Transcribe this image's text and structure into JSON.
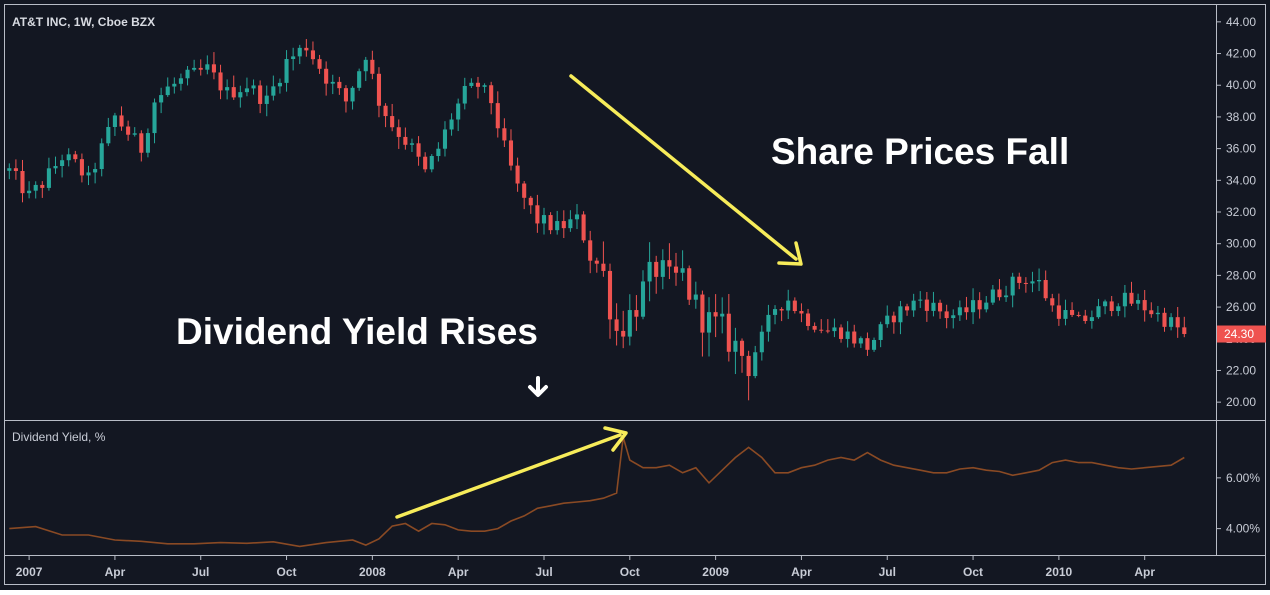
{
  "chart_data": [
    {
      "type": "candlestick",
      "title": "AT&T INC, 1W, Cboe BZX",
      "ylim": [
        19.0,
        45.0
      ],
      "y_ticks": [
        "20.00",
        "22.00",
        "24.00",
        "26.00",
        "28.00",
        "30.00",
        "32.00",
        "34.00",
        "36.00",
        "38.00",
        "40.00",
        "42.00",
        "44.00"
      ],
      "last_price_label": "24.30",
      "x_ticks": [
        "2007",
        "Apr",
        "Jul",
        "Oct",
        "2008",
        "Apr",
        "Jul",
        "Oct",
        "2009",
        "Apr",
        "Jul",
        "Oct",
        "2010",
        "Apr"
      ],
      "x_tick_weeks": [
        3,
        16,
        29,
        42,
        55,
        68,
        81,
        94,
        107,
        120,
        133,
        146,
        159,
        172
      ],
      "weeks_total": 183,
      "anchors": [
        [
          0,
          34.6
        ],
        [
          3,
          33.0
        ],
        [
          5,
          33.8
        ],
        [
          8,
          35.5
        ],
        [
          10,
          35.0
        ],
        [
          12,
          34.0
        ],
        [
          14,
          36.0
        ],
        [
          16,
          38.0
        ],
        [
          18,
          37.0
        ],
        [
          20,
          36.0
        ],
        [
          22,
          39.0
        ],
        [
          24,
          39.8
        ],
        [
          27,
          40.5
        ],
        [
          30,
          41.0
        ],
        [
          33,
          39.5
        ],
        [
          36,
          40.0
        ],
        [
          39,
          39.0
        ],
        [
          42,
          41.5
        ],
        [
          45,
          42.5
        ],
        [
          48,
          40.5
        ],
        [
          51,
          39.0
        ],
        [
          54,
          42.0
        ],
        [
          56,
          39.0
        ],
        [
          58,
          37.5
        ],
        [
          61,
          36.0
        ],
        [
          63,
          34.5
        ],
        [
          65,
          36.0
        ],
        [
          67,
          38.0
        ],
        [
          69,
          39.5
        ],
        [
          71,
          40.0
        ],
        [
          73,
          39.0
        ],
        [
          75,
          36.0
        ],
        [
          77,
          33.5
        ],
        [
          80,
          31.5
        ],
        [
          83,
          31.0
        ],
        [
          86,
          31.5
        ],
        [
          88,
          29.5
        ],
        [
          90,
          28.0
        ],
        [
          92,
          24.5
        ],
        [
          94,
          25.5
        ],
        [
          96,
          27.0
        ],
        [
          98,
          28.5
        ],
        [
          100,
          27.5
        ],
        [
          102,
          28.0
        ],
        [
          104,
          26.0
        ],
        [
          106,
          25.0
        ],
        [
          108,
          24.5
        ],
        [
          110,
          23.5
        ],
        [
          112,
          22.5
        ],
        [
          114,
          24.0
        ],
        [
          116,
          26.0
        ],
        [
          118,
          26.5
        ],
        [
          120,
          25.5
        ],
        [
          122,
          25.0
        ],
        [
          124,
          24.5
        ],
        [
          126,
          24.5
        ],
        [
          128,
          24.0
        ],
        [
          130,
          23.5
        ],
        [
          132,
          24.5
        ],
        [
          134,
          25.5
        ],
        [
          136,
          26.0
        ],
        [
          138,
          26.5
        ],
        [
          140,
          26.0
        ],
        [
          142,
          25.5
        ],
        [
          144,
          25.5
        ],
        [
          146,
          26.0
        ],
        [
          148,
          26.5
        ],
        [
          150,
          27.0
        ],
        [
          152,
          27.5
        ],
        [
          154,
          27.8
        ],
        [
          156,
          27.5
        ],
        [
          158,
          26.0
        ],
        [
          160,
          25.5
        ],
        [
          162,
          25.0
        ],
        [
          164,
          25.5
        ],
        [
          166,
          26.0
        ],
        [
          168,
          26.5
        ],
        [
          170,
          26.3
        ],
        [
          172,
          26.0
        ],
        [
          174,
          25.5
        ],
        [
          176,
          25.0
        ],
        [
          178,
          24.3
        ]
      ],
      "annotations": [
        "Share Prices Fall",
        "Dividend Yield Rises"
      ]
    },
    {
      "type": "line",
      "title": "Dividend Yield, %",
      "ylim": [
        3.0,
        8.2
      ],
      "y_ticks": [
        "4.00%",
        "6.00%"
      ],
      "color": "#8a4a24",
      "points": [
        [
          0,
          4.0
        ],
        [
          4,
          4.08
        ],
        [
          8,
          3.75
        ],
        [
          12,
          3.75
        ],
        [
          16,
          3.55
        ],
        [
          20,
          3.5
        ],
        [
          24,
          3.4
        ],
        [
          28,
          3.4
        ],
        [
          32,
          3.45
        ],
        [
          36,
          3.42
        ],
        [
          40,
          3.48
        ],
        [
          44,
          3.3
        ],
        [
          48,
          3.45
        ],
        [
          52,
          3.55
        ],
        [
          54,
          3.35
        ],
        [
          56,
          3.6
        ],
        [
          58,
          4.1
        ],
        [
          60,
          4.2
        ],
        [
          62,
          3.9
        ],
        [
          64,
          4.2
        ],
        [
          66,
          4.15
        ],
        [
          68,
          3.95
        ],
        [
          70,
          3.9
        ],
        [
          72,
          3.9
        ],
        [
          74,
          4.0
        ],
        [
          76,
          4.3
        ],
        [
          78,
          4.5
        ],
        [
          80,
          4.8
        ],
        [
          82,
          4.9
        ],
        [
          84,
          5.0
        ],
        [
          86,
          5.05
        ],
        [
          88,
          5.1
        ],
        [
          90,
          5.2
        ],
        [
          92,
          5.4
        ],
        [
          93,
          7.6
        ],
        [
          94,
          6.7
        ],
        [
          96,
          6.4
        ],
        [
          98,
          6.4
        ],
        [
          100,
          6.5
        ],
        [
          102,
          6.2
        ],
        [
          104,
          6.4
        ],
        [
          106,
          5.8
        ],
        [
          108,
          6.3
        ],
        [
          110,
          6.8
        ],
        [
          112,
          7.2
        ],
        [
          114,
          6.8
        ],
        [
          116,
          6.2
        ],
        [
          118,
          6.2
        ],
        [
          120,
          6.4
        ],
        [
          122,
          6.5
        ],
        [
          124,
          6.7
        ],
        [
          126,
          6.8
        ],
        [
          128,
          6.7
        ],
        [
          130,
          7.0
        ],
        [
          132,
          6.7
        ],
        [
          134,
          6.5
        ],
        [
          136,
          6.4
        ],
        [
          138,
          6.3
        ],
        [
          140,
          6.2
        ],
        [
          142,
          6.2
        ],
        [
          144,
          6.35
        ],
        [
          146,
          6.4
        ],
        [
          148,
          6.3
        ],
        [
          150,
          6.25
        ],
        [
          152,
          6.1
        ],
        [
          154,
          6.2
        ],
        [
          156,
          6.3
        ],
        [
          158,
          6.6
        ],
        [
          160,
          6.7
        ],
        [
          162,
          6.6
        ],
        [
          164,
          6.6
        ],
        [
          166,
          6.5
        ],
        [
          168,
          6.4
        ],
        [
          170,
          6.35
        ],
        [
          172,
          6.4
        ],
        [
          174,
          6.45
        ],
        [
          176,
          6.5
        ],
        [
          178,
          6.8
        ]
      ]
    }
  ]
}
